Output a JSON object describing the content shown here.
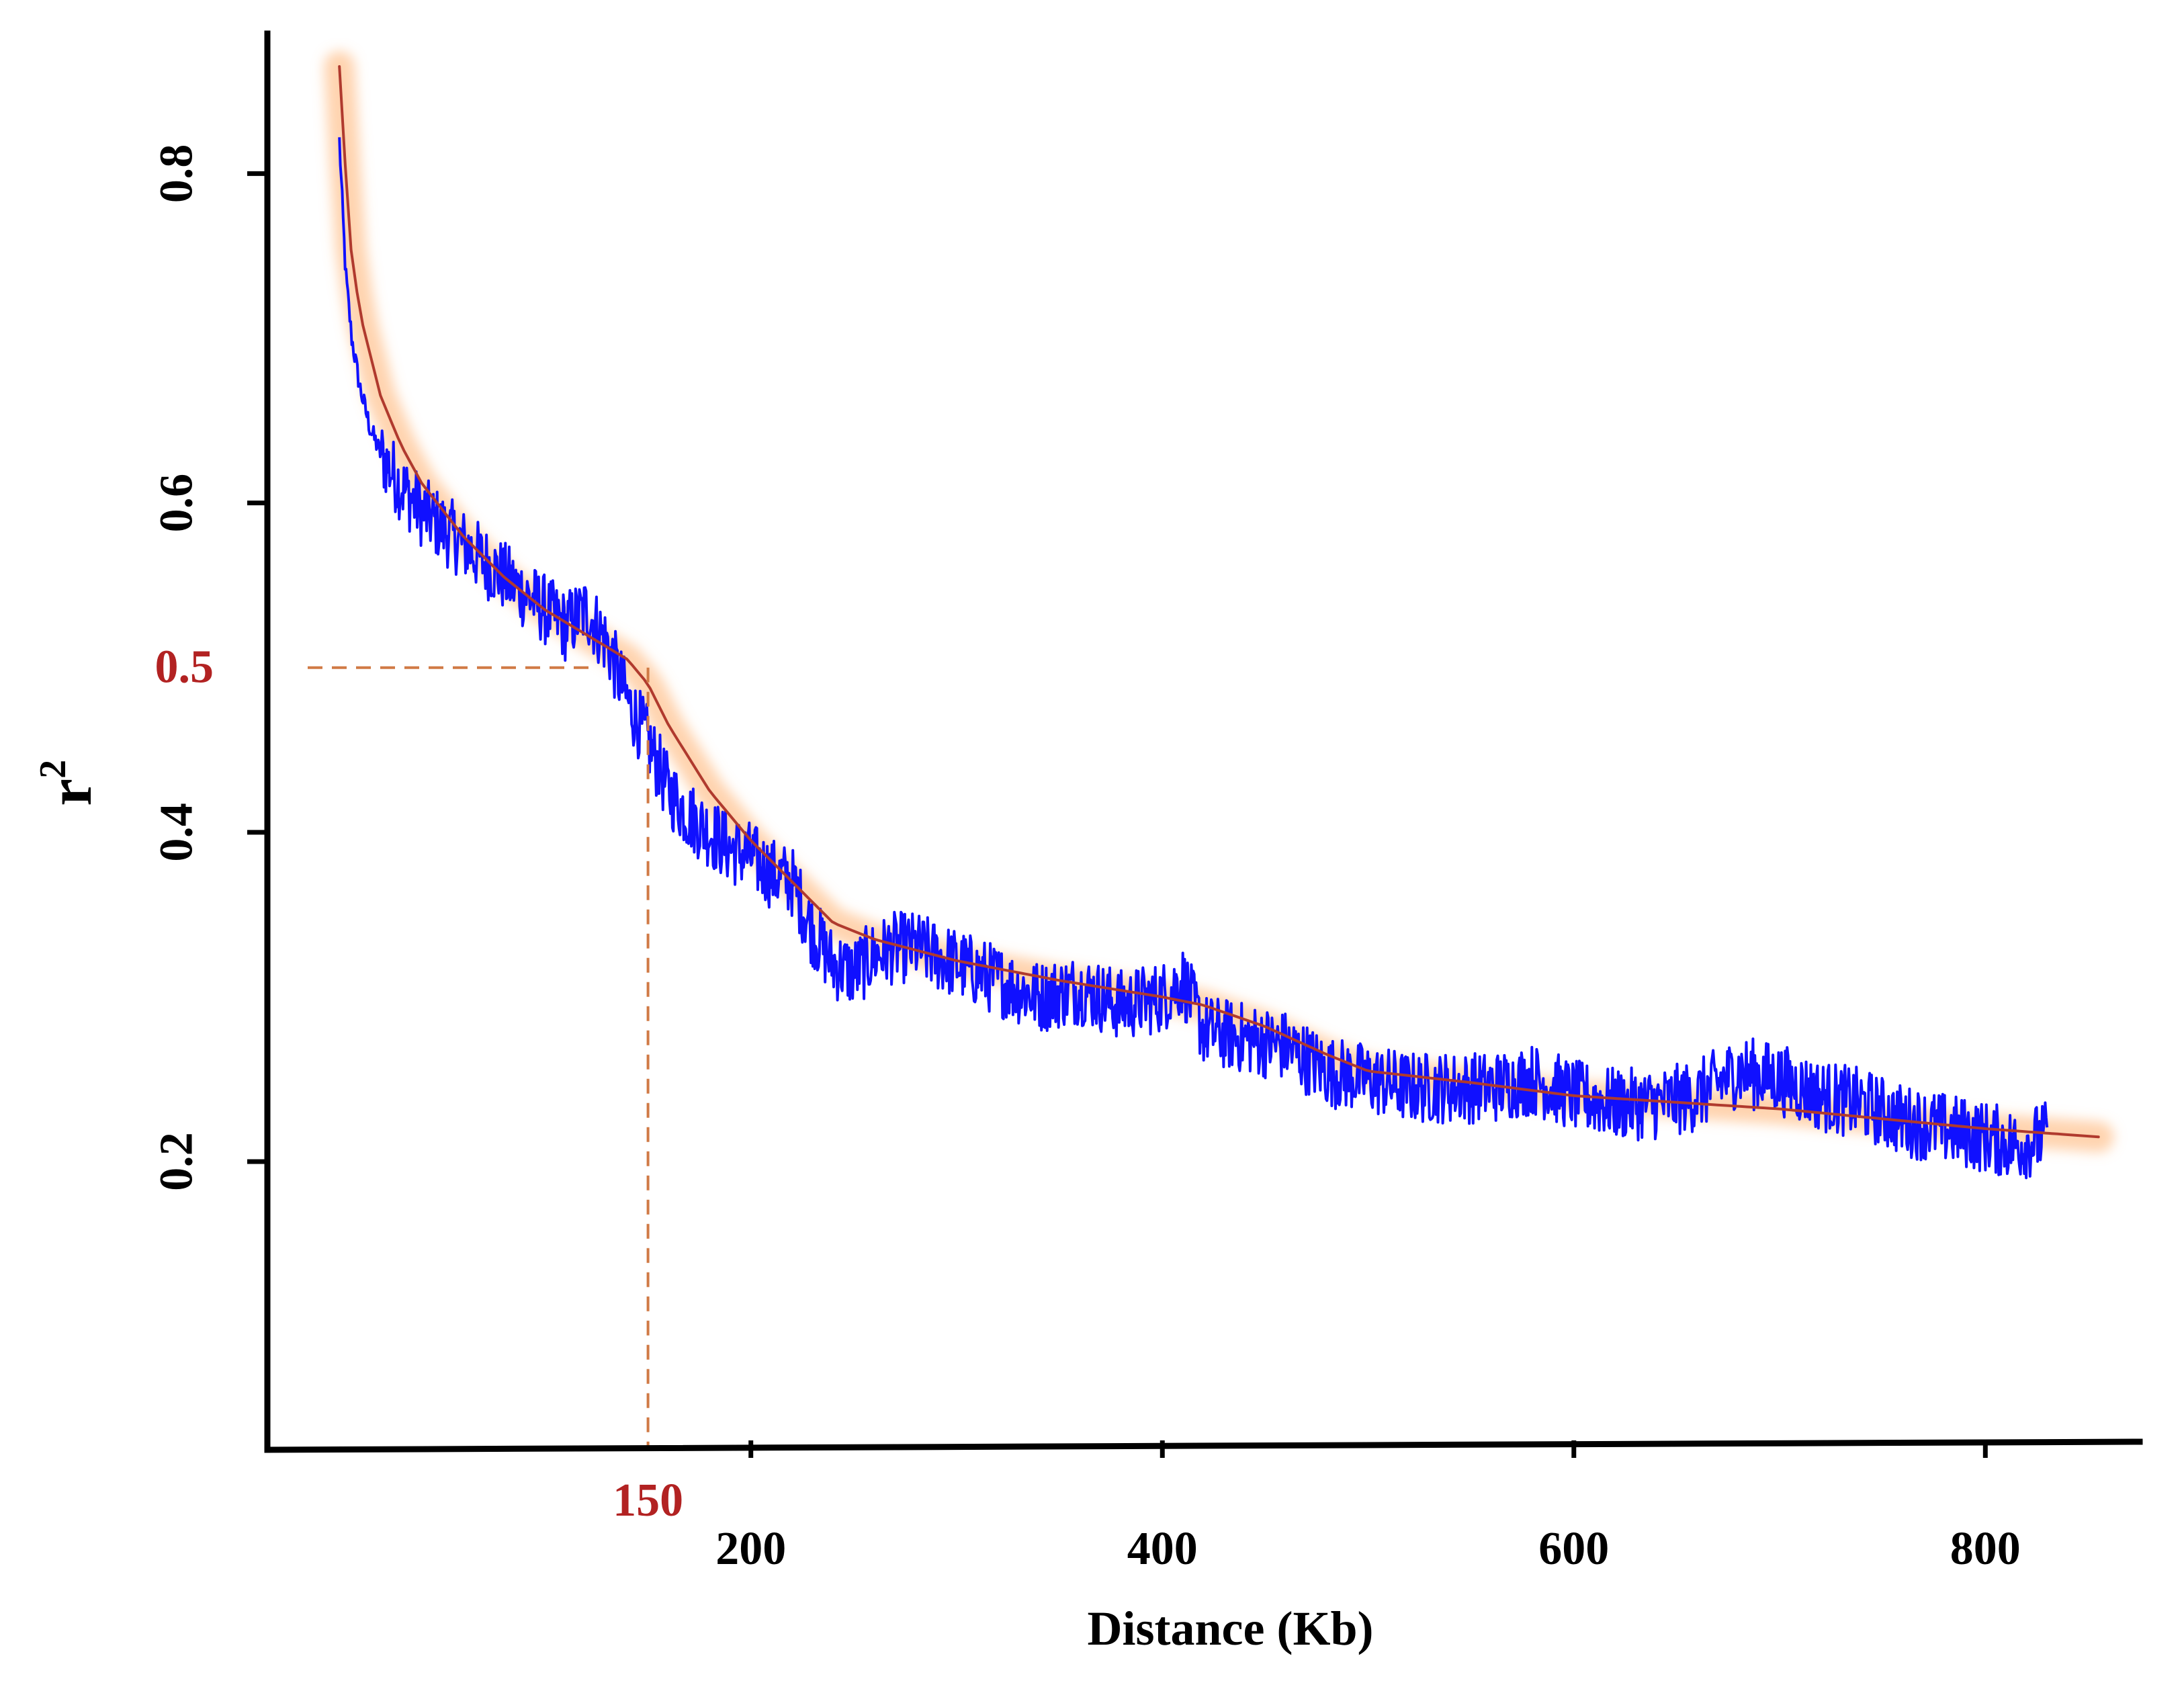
{
  "chart_data": {
    "type": "line",
    "xlabel": "Distance (Kb)",
    "ylabel": "r",
    "ylabel_superscript": "2",
    "xlim": [
      -35,
      875
    ],
    "ylim": [
      0.025,
      0.885
    ],
    "xticks": [
      200,
      400,
      600,
      800
    ],
    "xtick_labels": [
      "200",
      "400",
      "600",
      "800"
    ],
    "yticks": [
      0.2,
      0.4,
      0.6,
      0.8
    ],
    "ytick_labels": [
      "0.2",
      "0.4",
      "0.6",
      "0.8"
    ],
    "grid": false,
    "legend": "none",
    "series": [
      {
        "kind": "noisy",
        "color": "#1010ff",
        "x_range": [
          0,
          830
        ],
        "x": [
          0,
          3,
          6,
          10,
          15,
          20,
          25,
          30,
          40,
          50,
          60,
          70,
          80,
          90,
          100,
          110,
          120,
          130,
          140,
          150,
          160,
          170,
          180,
          190,
          200,
          210,
          220,
          230,
          240,
          250,
          260,
          270,
          280,
          300,
          320,
          340,
          360,
          380,
          400,
          410,
          420,
          440,
          460,
          480,
          500,
          520,
          540,
          560,
          580,
          600,
          620,
          640,
          660,
          680,
          700,
          720,
          740,
          760,
          780,
          800,
          815,
          830
        ],
        "y": [
          0.82,
          0.74,
          0.7,
          0.67,
          0.645,
          0.63,
          0.62,
          0.61,
          0.595,
          0.585,
          0.575,
          0.565,
          0.555,
          0.545,
          0.535,
          0.525,
          0.535,
          0.515,
          0.48,
          0.455,
          0.425,
          0.41,
          0.4,
          0.39,
          0.385,
          0.375,
          0.37,
          0.34,
          0.32,
          0.315,
          0.325,
          0.33,
          0.33,
          0.32,
          0.31,
          0.3,
          0.305,
          0.295,
          0.3,
          0.31,
          0.28,
          0.275,
          0.27,
          0.255,
          0.25,
          0.245,
          0.245,
          0.245,
          0.25,
          0.24,
          0.235,
          0.235,
          0.24,
          0.255,
          0.25,
          0.24,
          0.235,
          0.225,
          0.22,
          0.215,
          0.21,
          0.215
        ],
        "noise_amplitude": 0.022
      },
      {
        "kind": "fit",
        "color": "#b03a2e",
        "glow_color": "#ffb070",
        "x": [
          0,
          5,
          10,
          20,
          30,
          40,
          60,
          80,
          100,
          120,
          140,
          150,
          160,
          180,
          200,
          220,
          240,
          260,
          300,
          350,
          400,
          420,
          450,
          480,
          500,
          550,
          600,
          650,
          700,
          750,
          800,
          855
        ],
        "y": [
          0.865,
          0.76,
          0.715,
          0.665,
          0.635,
          0.612,
          0.58,
          0.555,
          0.535,
          0.52,
          0.505,
          0.49,
          0.465,
          0.425,
          0.395,
          0.37,
          0.345,
          0.335,
          0.322,
          0.31,
          0.3,
          0.295,
          0.282,
          0.265,
          0.255,
          0.248,
          0.24,
          0.236,
          0.232,
          0.226,
          0.22,
          0.215
        ]
      }
    ],
    "annotations": [
      {
        "type": "hline-dashed",
        "y": 0.5,
        "x_from": -35,
        "x_to": 125,
        "color": "#d07a45"
      },
      {
        "type": "vline-dashed",
        "x": 150,
        "y_from": 0.025,
        "y_to": 0.5,
        "color": "#d07a45"
      },
      {
        "type": "label",
        "text": "0.5",
        "at_y": 0.5,
        "color": "#b22222"
      },
      {
        "type": "label",
        "text": "150",
        "at_x": 150,
        "color": "#b22222"
      }
    ]
  }
}
